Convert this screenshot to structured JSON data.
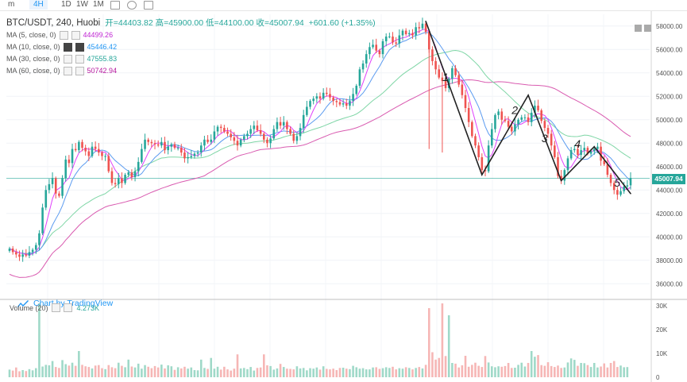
{
  "toolbar": {
    "items": [
      "m",
      "4H",
      "1D",
      "1W",
      "1M"
    ],
    "active": "4H"
  },
  "header": {
    "symbol": "BTC/USDT, 240, Huobi",
    "open_label": "开",
    "open": "44403.82",
    "high_label": "高",
    "high": "45900.00",
    "low_label": "低",
    "low": "44100.00",
    "close_label": "收",
    "close": "45007.94",
    "change": "+601.60 (+1.35%)"
  },
  "ma_legend": [
    {
      "label": "MA (5, close, 0)",
      "value": "44499.26",
      "color": "#c026d3"
    },
    {
      "label": "MA (10, close, 0)",
      "value": "45446.42",
      "color": "#2196f3"
    },
    {
      "label": "MA (30, close, 0)",
      "value": "47555.83",
      "color": "#26a69a"
    },
    {
      "label": "MA (60, close, 0)",
      "value": "50742.94",
      "color": "#b5179e"
    }
  ],
  "watermark": "Chart by TradingView",
  "volume_legend": {
    "label": "Volume (20)",
    "value": "4.273K"
  },
  "price_tag": "45007.94",
  "price_axis_ticks": [
    "36000.00",
    "38000.00",
    "40000.00",
    "42000.00",
    "44000.00",
    "46000.00",
    "48000.00",
    "50000.00",
    "52000.00",
    "54000.00",
    "56000.00",
    "58000.00"
  ],
  "volume_axis_ticks": [
    "0",
    "10K",
    "20K",
    "30K"
  ],
  "colors": {
    "up": "#26a69a",
    "down": "#ef5350",
    "vol_up": "#9fd9c8",
    "vol_down": "#f6b6b5",
    "ma5": "#e040fb",
    "ma10": "#5b9bf0",
    "ma30": "#7fd6a6",
    "ma60": "#d95bb0"
  },
  "annotations": [
    "1",
    "2",
    "3",
    "4",
    "5"
  ],
  "chart_data": {
    "type": "candlestick",
    "y_range": [
      35000,
      59000
    ],
    "volume_range": [
      0,
      31000
    ],
    "current_price": 45007.94,
    "closes": [
      39000,
      38700,
      38500,
      38300,
      38500,
      38400,
      38700,
      38900,
      39300,
      40300,
      42500,
      44000,
      44500,
      45000,
      43700,
      43500,
      45000,
      46600,
      46300,
      47500,
      47400,
      48100,
      47600,
      47300,
      46900,
      47700,
      47500,
      47200,
      46900,
      46900,
      45600,
      44600,
      44500,
      45000,
      44600,
      45300,
      45500,
      45100,
      45600,
      46400,
      47500,
      48300,
      48100,
      48000,
      47900,
      47800,
      48100,
      47400,
      47700,
      47900,
      47600,
      47600,
      47200,
      46700,
      46800,
      46900,
      47100,
      47200,
      47800,
      48300,
      48100,
      48300,
      49000,
      49400,
      49300,
      49000,
      48800,
      48500,
      48200,
      47800,
      48300,
      48600,
      48800,
      49200,
      49500,
      49100,
      48800,
      48300,
      48000,
      48400,
      49200,
      49800,
      49500,
      49800,
      49200,
      48800,
      48200,
      48600,
      49300,
      50400,
      51100,
      51600,
      51800,
      52000,
      51800,
      52300,
      52200,
      51900,
      51600,
      51500,
      51300,
      51400,
      51200,
      51600,
      52200,
      52900,
      54300,
      54800,
      55600,
      56200,
      56400,
      55900,
      55600,
      56700,
      57100,
      57100,
      56600,
      56500,
      57200,
      57600,
      57300,
      57400,
      57200,
      57900,
      57800,
      58200,
      57500,
      56000,
      55000,
      54300,
      53600,
      53300,
      52700,
      53500,
      54400,
      53800,
      53000,
      52100,
      51000,
      49800,
      48600,
      47800,
      46800,
      45700,
      45600,
      47800,
      49200,
      50400,
      50700,
      50000,
      49900,
      49400,
      49000,
      49600,
      50000,
      50200,
      50200,
      49800,
      50600,
      51200,
      50800,
      49900,
      49300,
      48800,
      47800,
      46800,
      45200,
      44800,
      45700,
      46700,
      47400,
      47500,
      47000,
      47400,
      47600,
      47100,
      47300,
      47500,
      47700,
      46500,
      46200,
      45300,
      44600,
      44000,
      43600,
      43900,
      44300,
      44400,
      45007.94
    ],
    "volumes": [
      3200,
      2800,
      4100,
      2500,
      3000,
      2600,
      3400,
      2900,
      3800,
      31000,
      4500,
      5200,
      5000,
      6800,
      4300,
      3900,
      7200,
      5500,
      4900,
      6100,
      4800,
      11000,
      5200,
      4600,
      4300,
      3700,
      4900,
      5100,
      3800,
      3400,
      5100,
      4200,
      3800,
      6100,
      4800,
      4200,
      7400,
      4500,
      4100,
      5700,
      3600,
      5100,
      4400,
      3800,
      4700,
      4100,
      5300,
      3700,
      5000,
      4600,
      3100,
      4200,
      3700,
      4400,
      3600,
      4100,
      3000,
      2900,
      7400,
      3900,
      3500,
      8100,
      3600,
      4400,
      3200,
      4400,
      3300,
      2800,
      3600,
      9600,
      3700,
      3900,
      3400,
      4300,
      2800,
      3900,
      4100,
      9600,
      5000,
      4700,
      3200,
      3700,
      5600,
      4300,
      3600,
      3500,
      3300,
      4600,
      3700,
      3900,
      2900,
      3800,
      3600,
      4100,
      3200,
      4600,
      3500,
      3300,
      3600,
      3000,
      3900,
      4000,
      3600,
      3400,
      4800,
      4200,
      3600,
      3800,
      3300,
      3300,
      4100,
      4200,
      3500,
      3800,
      4200,
      3900,
      4400,
      3300,
      3800,
      3600,
      4200,
      3900,
      3300,
      3900,
      4300,
      3700,
      5200,
      29000,
      10500,
      7400,
      8100,
      31000,
      8900,
      26000,
      6000,
      5700,
      4100,
      5000,
      9000,
      4400,
      5200,
      6100,
      4800,
      4300,
      8900,
      6200,
      4600,
      4200,
      4600,
      4400,
      4700,
      6000,
      3900,
      4000,
      5200,
      6100,
      4500,
      6000,
      11000,
      8600,
      9300,
      5100,
      4800,
      6300,
      4700,
      4300,
      4900,
      3900,
      4100,
      6200,
      7900,
      7300,
      4800,
      6000,
      5900,
      5100,
      4300,
      6000,
      4100,
      4500,
      5800,
      4100,
      6000,
      6800,
      4300,
      4900,
      4200,
      4273
    ],
    "ma_series": [
      "MA5",
      "MA10",
      "MA30",
      "MA60"
    ]
  }
}
